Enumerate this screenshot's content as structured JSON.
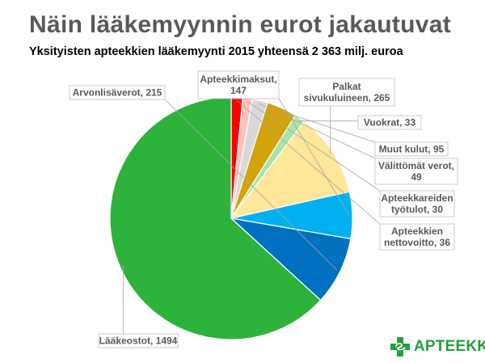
{
  "title": "Näin lääkemyynnin eurot jakautuvat",
  "subtitle": "Yksityisten apteekkien lääkemyynti 2015 yhteensä 2 363 milj. euroa",
  "chart_data": {
    "type": "pie",
    "start_angle_deg": 90,
    "direction": "clockwise",
    "slices": [
      {
        "label": "Apteekkien nettovoitto, 36",
        "label_lines": [
          "Apteekkien",
          "nettovoitto, 36"
        ],
        "value": 36,
        "color": "#ff0000"
      },
      {
        "label": "Apteekkareiden työtulot, 30",
        "label_lines": [
          "Apteekkareiden",
          "työtulot, 30"
        ],
        "value": 30,
        "color": "#ffc1b8"
      },
      {
        "label": "Välittömät verot, 49",
        "label_lines": [
          "Välittömät verot,",
          "49"
        ],
        "value": 49,
        "color": "#d9d9d9"
      },
      {
        "label": "Muut kulut, 95",
        "label_lines": [
          "Muut kulut, 95"
        ],
        "value": 95,
        "color": "#d4a20a"
      },
      {
        "label": "Vuokrat, 33",
        "label_lines": [
          "Vuokrat, 33"
        ],
        "value": 33,
        "color": "#a9e5a9"
      },
      {
        "label": "Palkat sivukuluineen, 265",
        "label_lines": [
          "Palkat",
          "sivukuluineen, 265"
        ],
        "value": 265,
        "color": "#ffe699"
      },
      {
        "label": "Apteekkimaksut, 147",
        "label_lines": [
          "Apteekkimaksut,",
          "147"
        ],
        "value": 147,
        "color": "#00b0f0"
      },
      {
        "label": "Arvonlisäverot, 215",
        "label_lines": [
          "Arvonlisäverot, 215"
        ],
        "value": 215,
        "color": "#0070c0"
      },
      {
        "label": "Lääkeostot, 1494",
        "label_lines": [
          "Lääkeostot, 1494"
        ],
        "value": 1494,
        "color": "#2db23b"
      }
    ]
  },
  "logo": {
    "name": "APTEEKKI",
    "icon": "green-cross-with-snake-icon",
    "color": "#22a03a"
  }
}
